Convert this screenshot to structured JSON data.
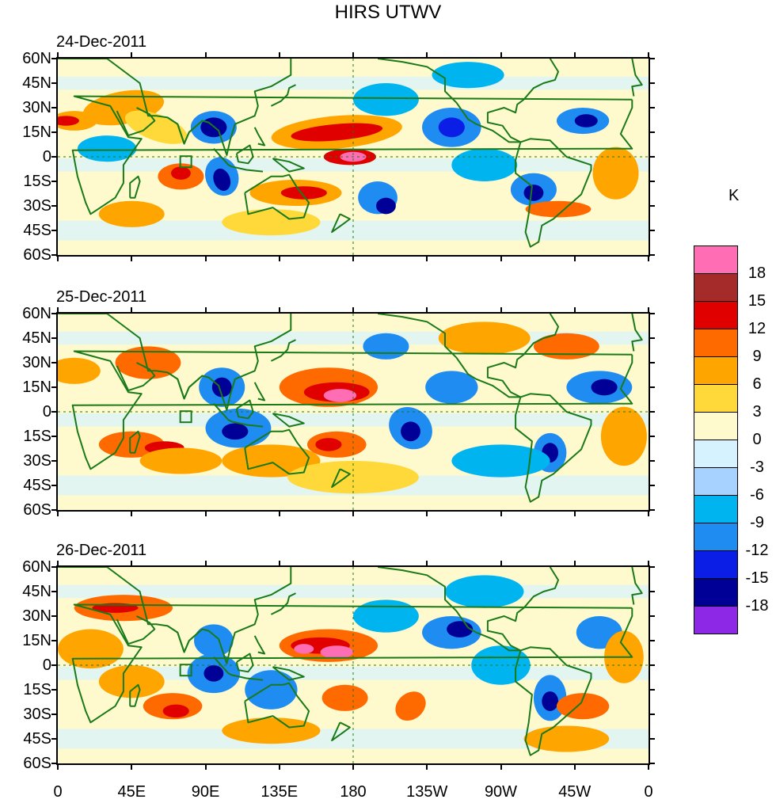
{
  "title": "HIRS UTWV",
  "panels": [
    {
      "date": "24-Dec-2011"
    },
    {
      "date": "25-Dec-2011"
    },
    {
      "date": "26-Dec-2011"
    }
  ],
  "lat_labels": [
    "60N",
    "45N",
    "30N",
    "15N",
    "0",
    "15S",
    "30S",
    "45S",
    "60S"
  ],
  "lon_labels": [
    "0",
    "45E",
    "90E",
    "135E",
    "180",
    "135W",
    "90W",
    "45W",
    "0"
  ],
  "colorbar": {
    "unit": "K",
    "levels": [
      "18",
      "15",
      "12",
      "9",
      "6",
      "3",
      "0",
      "-3",
      "-6",
      "-9",
      "-12",
      "-15",
      "-18"
    ],
    "colors": [
      "#ff6eb4",
      "#a52a2a",
      "#e00000",
      "#ff6a00",
      "#ffa500",
      "#ffd83a",
      "#fffacd",
      "#d7f2ff",
      "#a7d2ff",
      "#00b4f0",
      "#1e8cf0",
      "#0a1ee6",
      "#000096",
      "#8c28e6"
    ]
  },
  "map_colors": {
    "background": "#fffacd",
    "coast": "#1a7a1a"
  }
}
